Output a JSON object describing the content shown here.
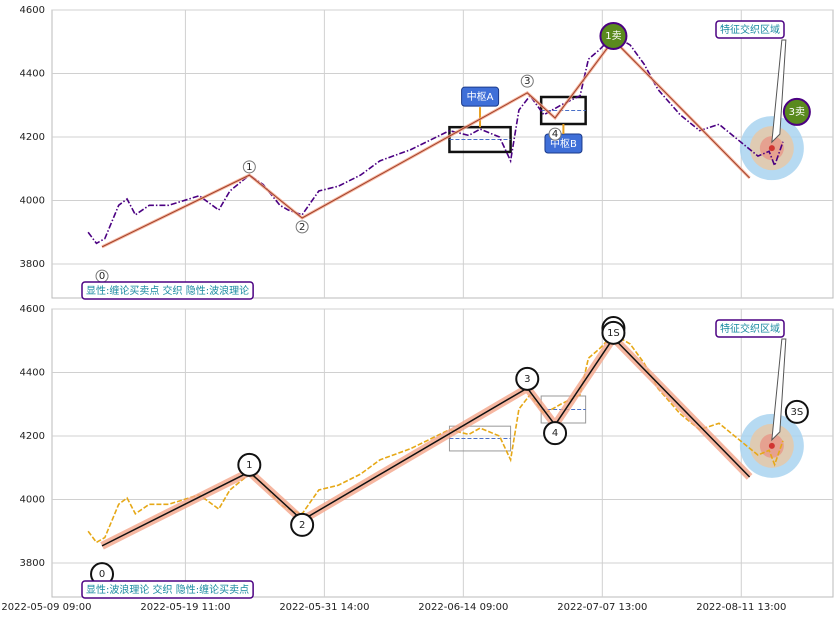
{
  "chart_data": [
    {
      "type": "line",
      "note": "显性:缠论买卖点 交织 隐性:波浪理论",
      "xlim": [
        2,
        283
      ],
      "xticks": [
        {
          "value": 0,
          "label": "2022-05-09 09:00"
        },
        {
          "value": 50,
          "label": "2022-05-19 11:00"
        },
        {
          "value": 100,
          "label": "2022-05-31 14:00"
        },
        {
          "value": 150,
          "label": "2022-06-14 09:00"
        },
        {
          "value": 200,
          "label": "2022-07-07 13:00"
        },
        {
          "value": 250,
          "label": "2022-08-11 13:00"
        }
      ],
      "ylim": [
        3693,
        4600
      ],
      "yticks": [
        3800,
        4000,
        4200,
        4400,
        4600
      ],
      "grid": true,
      "x": [
        15,
        18,
        21,
        26,
        29,
        32,
        37,
        44,
        55,
        62,
        66,
        73,
        78,
        84,
        87,
        92,
        98,
        105,
        113,
        120,
        131,
        138,
        145,
        152,
        156,
        163,
        167,
        170,
        174,
        179,
        185,
        192,
        195,
        199,
        204,
        210,
        215,
        220,
        228,
        235,
        242,
        249,
        256,
        260,
        262,
        265
      ],
      "series": [
        {
          "color": "#4b0082",
          "values": [
            3900,
            3865,
            3880,
            3985,
            4005,
            3955,
            3985,
            3985,
            4015,
            3970,
            4030,
            4080,
            4050,
            3985,
            3970,
            3955,
            4030,
            4045,
            4080,
            4125,
            4160,
            4190,
            4220,
            4205,
            4225,
            4200,
            4125,
            4285,
            4330,
            4270,
            4300,
            4330,
            4445,
            4475,
            4520,
            4490,
            4430,
            4350,
            4270,
            4220,
            4240,
            4190,
            4140,
            4155,
            4110,
            4185
          ]
        }
      ],
      "strokes": {
        "color": "#a0402a",
        "x": [
          20,
          73,
          92,
          173,
          183,
          204,
          253
        ],
        "values": [
          3854,
          4080,
          3945,
          4339,
          4260,
          4506,
          4071
        ]
      },
      "points": [
        {
          "label": "0",
          "x": 20,
          "y": 3762
        },
        {
          "label": "1",
          "x": 73,
          "y": 4106
        },
        {
          "label": "2",
          "x": 92,
          "y": 3917
        },
        {
          "label": "3",
          "x": 173,
          "y": 4376
        },
        {
          "label": "4",
          "x": 183,
          "y": 4209
        }
      ],
      "signals": [
        {
          "label": "1卖",
          "x": 204,
          "y": 4518
        },
        {
          "label": "3卖",
          "x": 270,
          "y": 4279
        }
      ],
      "pivots": [
        {
          "label": "中枢A",
          "x": [
            145,
            167
          ],
          "y": [
            4153,
            4231
          ]
        },
        {
          "label": "中枢B",
          "x": [
            178,
            194
          ],
          "y": [
            4241,
            4326
          ]
        }
      ],
      "zone": {
        "label": "特征交织区域",
        "x": 261,
        "y": 4165
      }
    },
    {
      "type": "line",
      "note": "显性:波浪理论 交织 隐性:缠论买卖点",
      "xlim": [
        2,
        283
      ],
      "xticks": [
        {
          "value": 0,
          "label": "2022-05-09 09:00"
        },
        {
          "value": 50,
          "label": "2022-05-19 11:00"
        },
        {
          "value": 100,
          "label": "2022-05-31 14:00"
        },
        {
          "value": 150,
          "label": "2022-06-14 09:00"
        },
        {
          "value": 200,
          "label": "2022-07-07 13:00"
        },
        {
          "value": 250,
          "label": "2022-08-11 13:00"
        }
      ],
      "ylim": [
        3693,
        4600
      ],
      "yticks": [
        3800,
        4000,
        4200,
        4400,
        4600
      ],
      "grid": true,
      "x": [
        15,
        18,
        21,
        26,
        29,
        32,
        37,
        44,
        55,
        62,
        66,
        73,
        78,
        84,
        87,
        92,
        98,
        105,
        113,
        120,
        131,
        138,
        145,
        152,
        156,
        163,
        167,
        170,
        174,
        179,
        185,
        192,
        195,
        199,
        204,
        210,
        215,
        220,
        228,
        235,
        242,
        249,
        256,
        260,
        262,
        265
      ],
      "series": [
        {
          "color": "#e6a817",
          "values": [
            3900,
            3865,
            3880,
            3985,
            4005,
            3955,
            3985,
            3985,
            4015,
            3970,
            4030,
            4080,
            4050,
            3985,
            3970,
            3955,
            4030,
            4045,
            4080,
            4125,
            4160,
            4190,
            4220,
            4205,
            4225,
            4200,
            4125,
            4285,
            4330,
            4270,
            4300,
            4330,
            4445,
            4475,
            4520,
            4490,
            4430,
            4350,
            4270,
            4220,
            4240,
            4190,
            4140,
            4155,
            4110,
            4185
          ]
        }
      ],
      "strokes": {
        "color": "#111111",
        "x": [
          20,
          73,
          92,
          173,
          183,
          204,
          253
        ],
        "values": [
          3854,
          4087,
          3935,
          4351,
          4235,
          4509,
          4071
        ]
      },
      "points": [
        {
          "label": "0",
          "x": 20,
          "y": 3765
        },
        {
          "label": "1",
          "x": 73,
          "y": 4109
        },
        {
          "label": "2",
          "x": 92,
          "y": 3920
        },
        {
          "label": "3",
          "x": 173,
          "y": 4380
        },
        {
          "label": "4",
          "x": 183,
          "y": 4209
        },
        {
          "label": "5",
          "x": 204,
          "y": 4540
        },
        {
          "label": "1S",
          "x": 204,
          "y": 4525
        },
        {
          "label": "3S",
          "x": 270,
          "y": 4276
        }
      ],
      "signals": [],
      "pivots": [
        {
          "label": "",
          "x": [
            145,
            167
          ],
          "y": [
            4153,
            4231
          ]
        },
        {
          "label": "",
          "x": [
            178,
            194
          ],
          "y": [
            4241,
            4326
          ]
        }
      ],
      "zone": {
        "label": "特征交织区域",
        "x": 261,
        "y": 4169
      }
    }
  ]
}
